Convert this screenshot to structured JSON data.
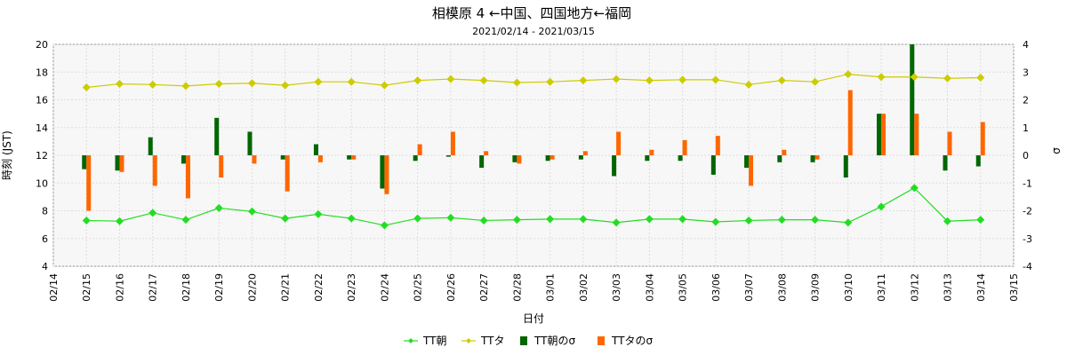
{
  "chart_data": {
    "type": "bar+line",
    "title": "相模原 4 ←中国、四国地方←福岡",
    "subtitle": "2021/02/14 - 2021/03/15",
    "xlabel": "日付",
    "ylabel_left": "時刻 (JST)",
    "ylabel_right": "σ",
    "ylim_left": [
      4,
      20
    ],
    "yticks_left": [
      "4",
      "6",
      "8",
      "10",
      "12",
      "14",
      "16",
      "18",
      "20"
    ],
    "ylim_right": [
      -4,
      4
    ],
    "yticks_right": [
      "-4",
      "-3",
      "-2",
      "-1",
      "0",
      "1",
      "2",
      "3",
      "4"
    ],
    "x": [
      "02/14",
      "02/15",
      "02/16",
      "02/17",
      "02/18",
      "02/19",
      "02/20",
      "02/21",
      "02/22",
      "02/23",
      "02/24",
      "02/25",
      "02/26",
      "02/27",
      "02/28",
      "03/01",
      "03/02",
      "03/03",
      "03/04",
      "03/05",
      "03/06",
      "03/07",
      "03/08",
      "03/09",
      "03/10",
      "03/11",
      "03/12",
      "03/13",
      "03/14",
      "03/15"
    ],
    "grid": true,
    "legend_position": "bottom",
    "series": [
      {
        "name": "TT朝",
        "kind": "line",
        "axis": "left",
        "color": "#22dd22",
        "x": [
          "02/15",
          "02/16",
          "02/17",
          "02/18",
          "02/19",
          "02/20",
          "02/21",
          "02/22",
          "02/23",
          "02/24",
          "02/25",
          "02/26",
          "02/27",
          "02/28",
          "03/01",
          "03/02",
          "03/03",
          "03/04",
          "03/05",
          "03/06",
          "03/07",
          "03/08",
          "03/09",
          "03/10",
          "03/11",
          "03/12",
          "03/13",
          "03/14"
        ],
        "values": [
          7.3,
          7.25,
          7.85,
          7.35,
          8.2,
          7.95,
          7.45,
          7.75,
          7.45,
          6.95,
          7.45,
          7.5,
          7.3,
          7.35,
          7.4,
          7.4,
          7.15,
          7.4,
          7.4,
          7.2,
          7.3,
          7.35,
          7.35,
          7.15,
          8.3,
          9.65,
          7.25,
          7.35
        ]
      },
      {
        "name": "TTタ",
        "kind": "line",
        "axis": "left",
        "color": "#cccc00",
        "x": [
          "02/15",
          "02/16",
          "02/17",
          "02/18",
          "02/19",
          "02/20",
          "02/21",
          "02/22",
          "02/23",
          "02/24",
          "02/25",
          "02/26",
          "02/27",
          "02/28",
          "03/01",
          "03/02",
          "03/03",
          "03/04",
          "03/05",
          "03/06",
          "03/07",
          "03/08",
          "03/09",
          "03/10",
          "03/11",
          "03/12",
          "03/13",
          "03/14"
        ],
        "values": [
          16.9,
          17.15,
          17.1,
          17.0,
          17.15,
          17.2,
          17.05,
          17.3,
          17.3,
          17.05,
          17.4,
          17.5,
          17.4,
          17.25,
          17.3,
          17.4,
          17.5,
          17.4,
          17.45,
          17.45,
          17.1,
          17.4,
          17.3,
          17.85,
          17.65,
          17.65,
          17.55,
          17.6
        ]
      },
      {
        "name": "TT朝のσ",
        "kind": "bar",
        "axis": "right",
        "color": "#006600",
        "x": [
          "02/15",
          "02/16",
          "02/17",
          "02/18",
          "02/19",
          "02/20",
          "02/21",
          "02/22",
          "02/23",
          "02/24",
          "02/25",
          "02/26",
          "02/27",
          "02/28",
          "03/01",
          "03/02",
          "03/03",
          "03/04",
          "03/05",
          "03/06",
          "03/07",
          "03/08",
          "03/09",
          "03/10",
          "03/11",
          "03/12",
          "03/13",
          "03/14"
        ],
        "values": [
          -0.5,
          -0.55,
          0.65,
          -0.3,
          1.35,
          0.85,
          -0.15,
          0.4,
          -0.15,
          -1.2,
          -0.2,
          -0.05,
          -0.45,
          -0.25,
          -0.2,
          -0.15,
          -0.75,
          -0.2,
          -0.2,
          -0.7,
          -0.45,
          -0.25,
          -0.25,
          -0.8,
          1.5,
          4.3,
          -0.55,
          -0.4
        ]
      },
      {
        "name": "TTタのσ",
        "kind": "bar",
        "axis": "right",
        "color": "#ff6600",
        "x": [
          "02/15",
          "02/16",
          "02/17",
          "02/18",
          "02/19",
          "02/20",
          "02/21",
          "02/22",
          "02/23",
          "02/24",
          "02/25",
          "02/26",
          "02/27",
          "02/28",
          "03/01",
          "03/02",
          "03/03",
          "03/04",
          "03/05",
          "03/06",
          "03/07",
          "03/08",
          "03/09",
          "03/10",
          "03/11",
          "03/12",
          "03/13",
          "03/14"
        ],
        "values": [
          -2.0,
          -0.6,
          -1.1,
          -1.55,
          -0.8,
          -0.3,
          -1.3,
          -0.25,
          -0.15,
          -1.4,
          0.4,
          0.85,
          0.15,
          -0.3,
          -0.15,
          0.15,
          0.85,
          0.2,
          0.55,
          0.7,
          -1.1,
          0.2,
          -0.15,
          2.35,
          1.5,
          1.5,
          0.85,
          1.2
        ]
      }
    ]
  }
}
